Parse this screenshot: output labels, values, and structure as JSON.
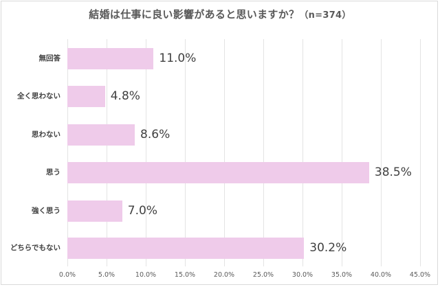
{
  "chart_data": {
    "type": "bar",
    "orientation": "horizontal",
    "title": "結婚は仕事に良い影響があると思いますか？",
    "title_suffix": "（n=374）",
    "categories": [
      "無回答",
      "全く思わない",
      "思わない",
      "思う",
      "強く思う",
      "どちらでもない"
    ],
    "values": [
      11.0,
      4.8,
      8.6,
      38.5,
      7.0,
      30.2
    ],
    "value_labels": [
      "11.0%",
      "4.8%",
      "8.6%",
      "38.5%",
      "7.0%",
      "30.2%"
    ],
    "xlabel": "",
    "ylabel": "",
    "xlim": [
      0,
      45
    ],
    "x_ticks": [
      "0.0%",
      "5.0%",
      "10.0%",
      "15.0%",
      "20.0%",
      "25.0%",
      "30.0%",
      "35.0%",
      "40.0%",
      "45.0%"
    ],
    "grid": "vertical",
    "legend": "none",
    "bar_color": "#efcbea"
  }
}
